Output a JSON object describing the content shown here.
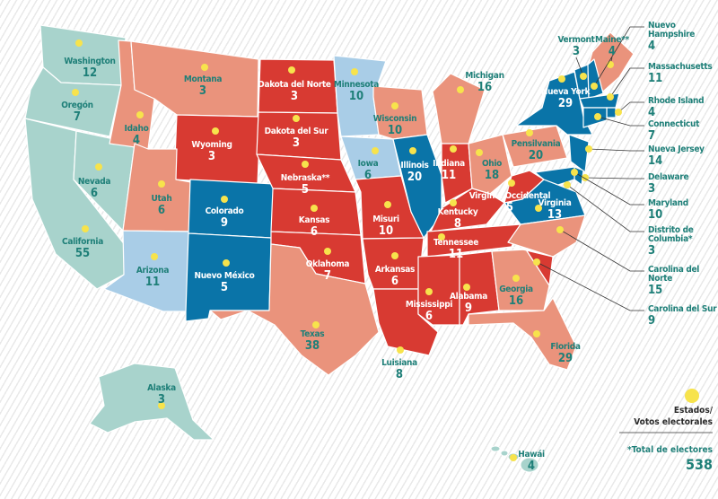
{
  "states": [
    {
      "name": "Washington",
      "votes": 12,
      "color": "#a8d3cc"
    },
    {
      "name": "Oregón",
      "votes": 7,
      "color": "#a8d3cc"
    },
    {
      "name": "California",
      "votes": 55,
      "color": "#a8d3cc"
    },
    {
      "name": "Nevada",
      "votes": 6,
      "color": "#a8d3cc"
    },
    {
      "name": "Idaho",
      "votes": 4,
      "color": "#ea937c"
    },
    {
      "name": "Montana",
      "votes": 3,
      "color": "#ea937c"
    },
    {
      "name": "Wyoming",
      "votes": 3,
      "color": "#d83a32"
    },
    {
      "name": "Utah",
      "votes": 6,
      "color": "#ea937c"
    },
    {
      "name": "Arizona",
      "votes": 11,
      "color": "#a9cde7"
    },
    {
      "name": "Colorado",
      "votes": 9,
      "color": "#0a74a8"
    },
    {
      "name": "Nuevo México",
      "votes": 5,
      "color": "#0a74a8"
    },
    {
      "name": "Dakota del Norte",
      "votes": 3,
      "color": "#d83a32"
    },
    {
      "name": "Dakota del Sur",
      "votes": 3,
      "color": "#d83a32"
    },
    {
      "name": "Nebraska**",
      "votes": 5,
      "color": "#d83a32"
    },
    {
      "name": "Kansas",
      "votes": 6,
      "color": "#d83a32"
    },
    {
      "name": "Oklahoma",
      "votes": 7,
      "color": "#d83a32"
    },
    {
      "name": "Texas",
      "votes": 38,
      "color": "#ea937c"
    },
    {
      "name": "Minnesota",
      "votes": 10,
      "color": "#a9cde7"
    },
    {
      "name": "Iowa",
      "votes": 6,
      "color": "#a9cde7"
    },
    {
      "name": "Misuri",
      "votes": 10,
      "color": "#d83a32"
    },
    {
      "name": "Arkansas",
      "votes": 6,
      "color": "#d83a32"
    },
    {
      "name": "Luisiana",
      "votes": 8,
      "color": "#d83a32"
    },
    {
      "name": "Wisconsin",
      "votes": 10,
      "color": "#ea937c"
    },
    {
      "name": "Illinois",
      "votes": 20,
      "color": "#0a74a8"
    },
    {
      "name": "Michigan",
      "votes": 16,
      "color": "#ea937c"
    },
    {
      "name": "Indiana",
      "votes": 11,
      "color": "#d83a32"
    },
    {
      "name": "Ohio",
      "votes": 18,
      "color": "#ea937c"
    },
    {
      "name": "Kentucky",
      "votes": 8,
      "color": "#d83a32"
    },
    {
      "name": "Tennessee",
      "votes": 11,
      "color": "#d83a32"
    },
    {
      "name": "Mississippi",
      "votes": 6,
      "color": "#d83a32"
    },
    {
      "name": "Alabama",
      "votes": 9,
      "color": "#d83a32"
    },
    {
      "name": "Georgia",
      "votes": 16,
      "color": "#ea937c"
    },
    {
      "name": "Florida",
      "votes": 29,
      "color": "#ea937c"
    },
    {
      "name": "Pensilvania",
      "votes": 20,
      "color": "#ea937c"
    },
    {
      "name": "Virginia Occidental",
      "votes": 5,
      "color": "#d83a32"
    },
    {
      "name": "Virginia",
      "votes": 13,
      "color": "#0a74a8"
    },
    {
      "name": "Nueva York",
      "votes": 29,
      "color": "#0a74a8"
    },
    {
      "name": "Vermont",
      "votes": 3,
      "color": "#0a74a8"
    },
    {
      "name": "Maine**",
      "votes": 4,
      "color": "#ea937c"
    },
    {
      "name": "Nuevo Hampshire",
      "votes": 4,
      "color": "#0a74a8"
    },
    {
      "name": "Massachusetts",
      "votes": 11,
      "color": "#0a74a8"
    },
    {
      "name": "Rhode Island",
      "votes": 4,
      "color": "#0a74a8"
    },
    {
      "name": "Connecticut",
      "votes": 7,
      "color": "#0a74a8"
    },
    {
      "name": "Nueva Jersey",
      "votes": 14,
      "color": "#0a74a8"
    },
    {
      "name": "Delaware",
      "votes": 3,
      "color": "#0a74a8"
    },
    {
      "name": "Maryland",
      "votes": 10,
      "color": "#0a74a8"
    },
    {
      "name": "Distrito de Columbia*",
      "votes": 3,
      "color": "#0a74a8"
    },
    {
      "name": "Carolina del Norte",
      "votes": 15,
      "color": "#ea937c"
    },
    {
      "name": "Carolina del Sur",
      "votes": 9,
      "color": "#d83a32"
    },
    {
      "name": "Alaska",
      "votes": 3,
      "color": "#a8d3cc"
    },
    {
      "name": "Hawái",
      "votes": 4,
      "color": "#a8d3cc"
    }
  ],
  "legend": {
    "line1": "Estados/",
    "line2": "Votos electorales",
    "total_label": "*Total de electores",
    "total": 538
  }
}
